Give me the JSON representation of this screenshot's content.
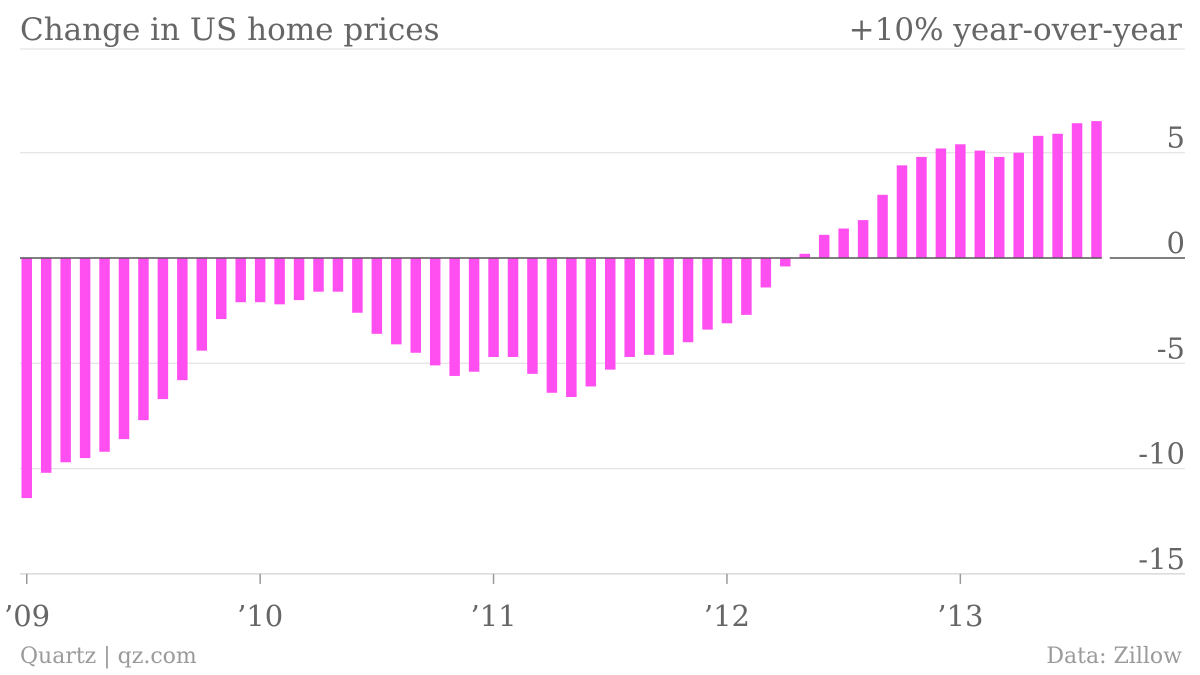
{
  "header": {
    "title": "Change in US home prices",
    "subtitle": "+10% year-over-year"
  },
  "footer": {
    "source_left": "Quartz | qz.com",
    "source_right": "Data: Zillow"
  },
  "colors": {
    "bar": "#ff4ff0",
    "grid": "#dddddd",
    "zero_line": "#555555",
    "text": "#666666"
  },
  "chart_data": {
    "type": "bar",
    "title": "Change in US home prices",
    "subtitle": "+10% year-over-year",
    "xlabel": "",
    "ylabel": "",
    "ylim": [
      -15,
      10
    ],
    "yticks": [
      5,
      0,
      -5,
      -10,
      -15
    ],
    "ytick_labels": [
      "5",
      "0",
      "-5",
      "-10",
      "-15"
    ],
    "grid": true,
    "ytick_position": "right",
    "xticks": [
      {
        "index": 0,
        "label": "’09"
      },
      {
        "index": 12,
        "label": "’10"
      },
      {
        "index": 24,
        "label": "’11"
      },
      {
        "index": 36,
        "label": "’12"
      },
      {
        "index": 48,
        "label": "’13"
      }
    ],
    "series": [
      {
        "values": [
          -11.4,
          -10.2,
          -9.7,
          -9.5,
          -9.2,
          -8.6,
          -7.7,
          -6.7,
          -5.8,
          -4.4,
          -2.9,
          -2.1,
          -2.1,
          -2.2,
          -2.0,
          -1.6,
          -1.6,
          -2.6,
          -3.6,
          -4.1,
          -4.5,
          -5.1,
          -5.6,
          -5.4,
          -4.7,
          -4.7,
          -5.5,
          -6.4,
          -6.6,
          -6.1,
          -5.3,
          -4.7,
          -4.6,
          -4.6,
          -4.0,
          -3.4,
          -3.1,
          -2.7,
          -1.4,
          -0.4,
          0.2,
          1.1,
          1.4,
          1.8,
          3.0,
          4.4,
          4.8,
          5.2,
          5.4,
          5.1,
          4.8,
          5.0,
          5.8,
          5.9,
          6.4,
          6.5
        ]
      }
    ]
  }
}
